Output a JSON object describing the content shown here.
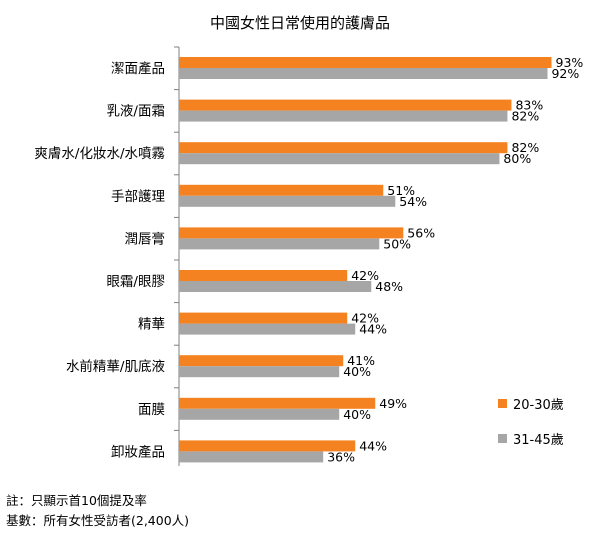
{
  "chart_data": {
    "type": "bar",
    "orientation": "horizontal",
    "title": "中國女性日常使用的護膚品",
    "categories": [
      "潔面產品",
      "乳液/面霜",
      "爽膚水/化妝水/水噴霧",
      "手部護理",
      "潤唇膏",
      "眼霜/眼膠",
      "精華",
      "水前精華/肌底液",
      "面膜",
      "卸妝產品"
    ],
    "series": [
      {
        "name": "20-30歲",
        "color": "#F58220",
        "values": [
          93,
          83,
          82,
          51,
          56,
          42,
          42,
          41,
          49,
          44
        ]
      },
      {
        "name": "31-45歲",
        "color": "#A6A6A6",
        "values": [
          92,
          82,
          80,
          54,
          50,
          48,
          44,
          40,
          40,
          36
        ]
      }
    ],
    "value_suffix": "%",
    "xlim": [
      0,
      100
    ],
    "grid": false,
    "legend_position": "bottom-right"
  },
  "notes": {
    "line1": "註：只顯示首10個提及率",
    "line2": "基數：所有女性受訪者(2,400人)"
  }
}
